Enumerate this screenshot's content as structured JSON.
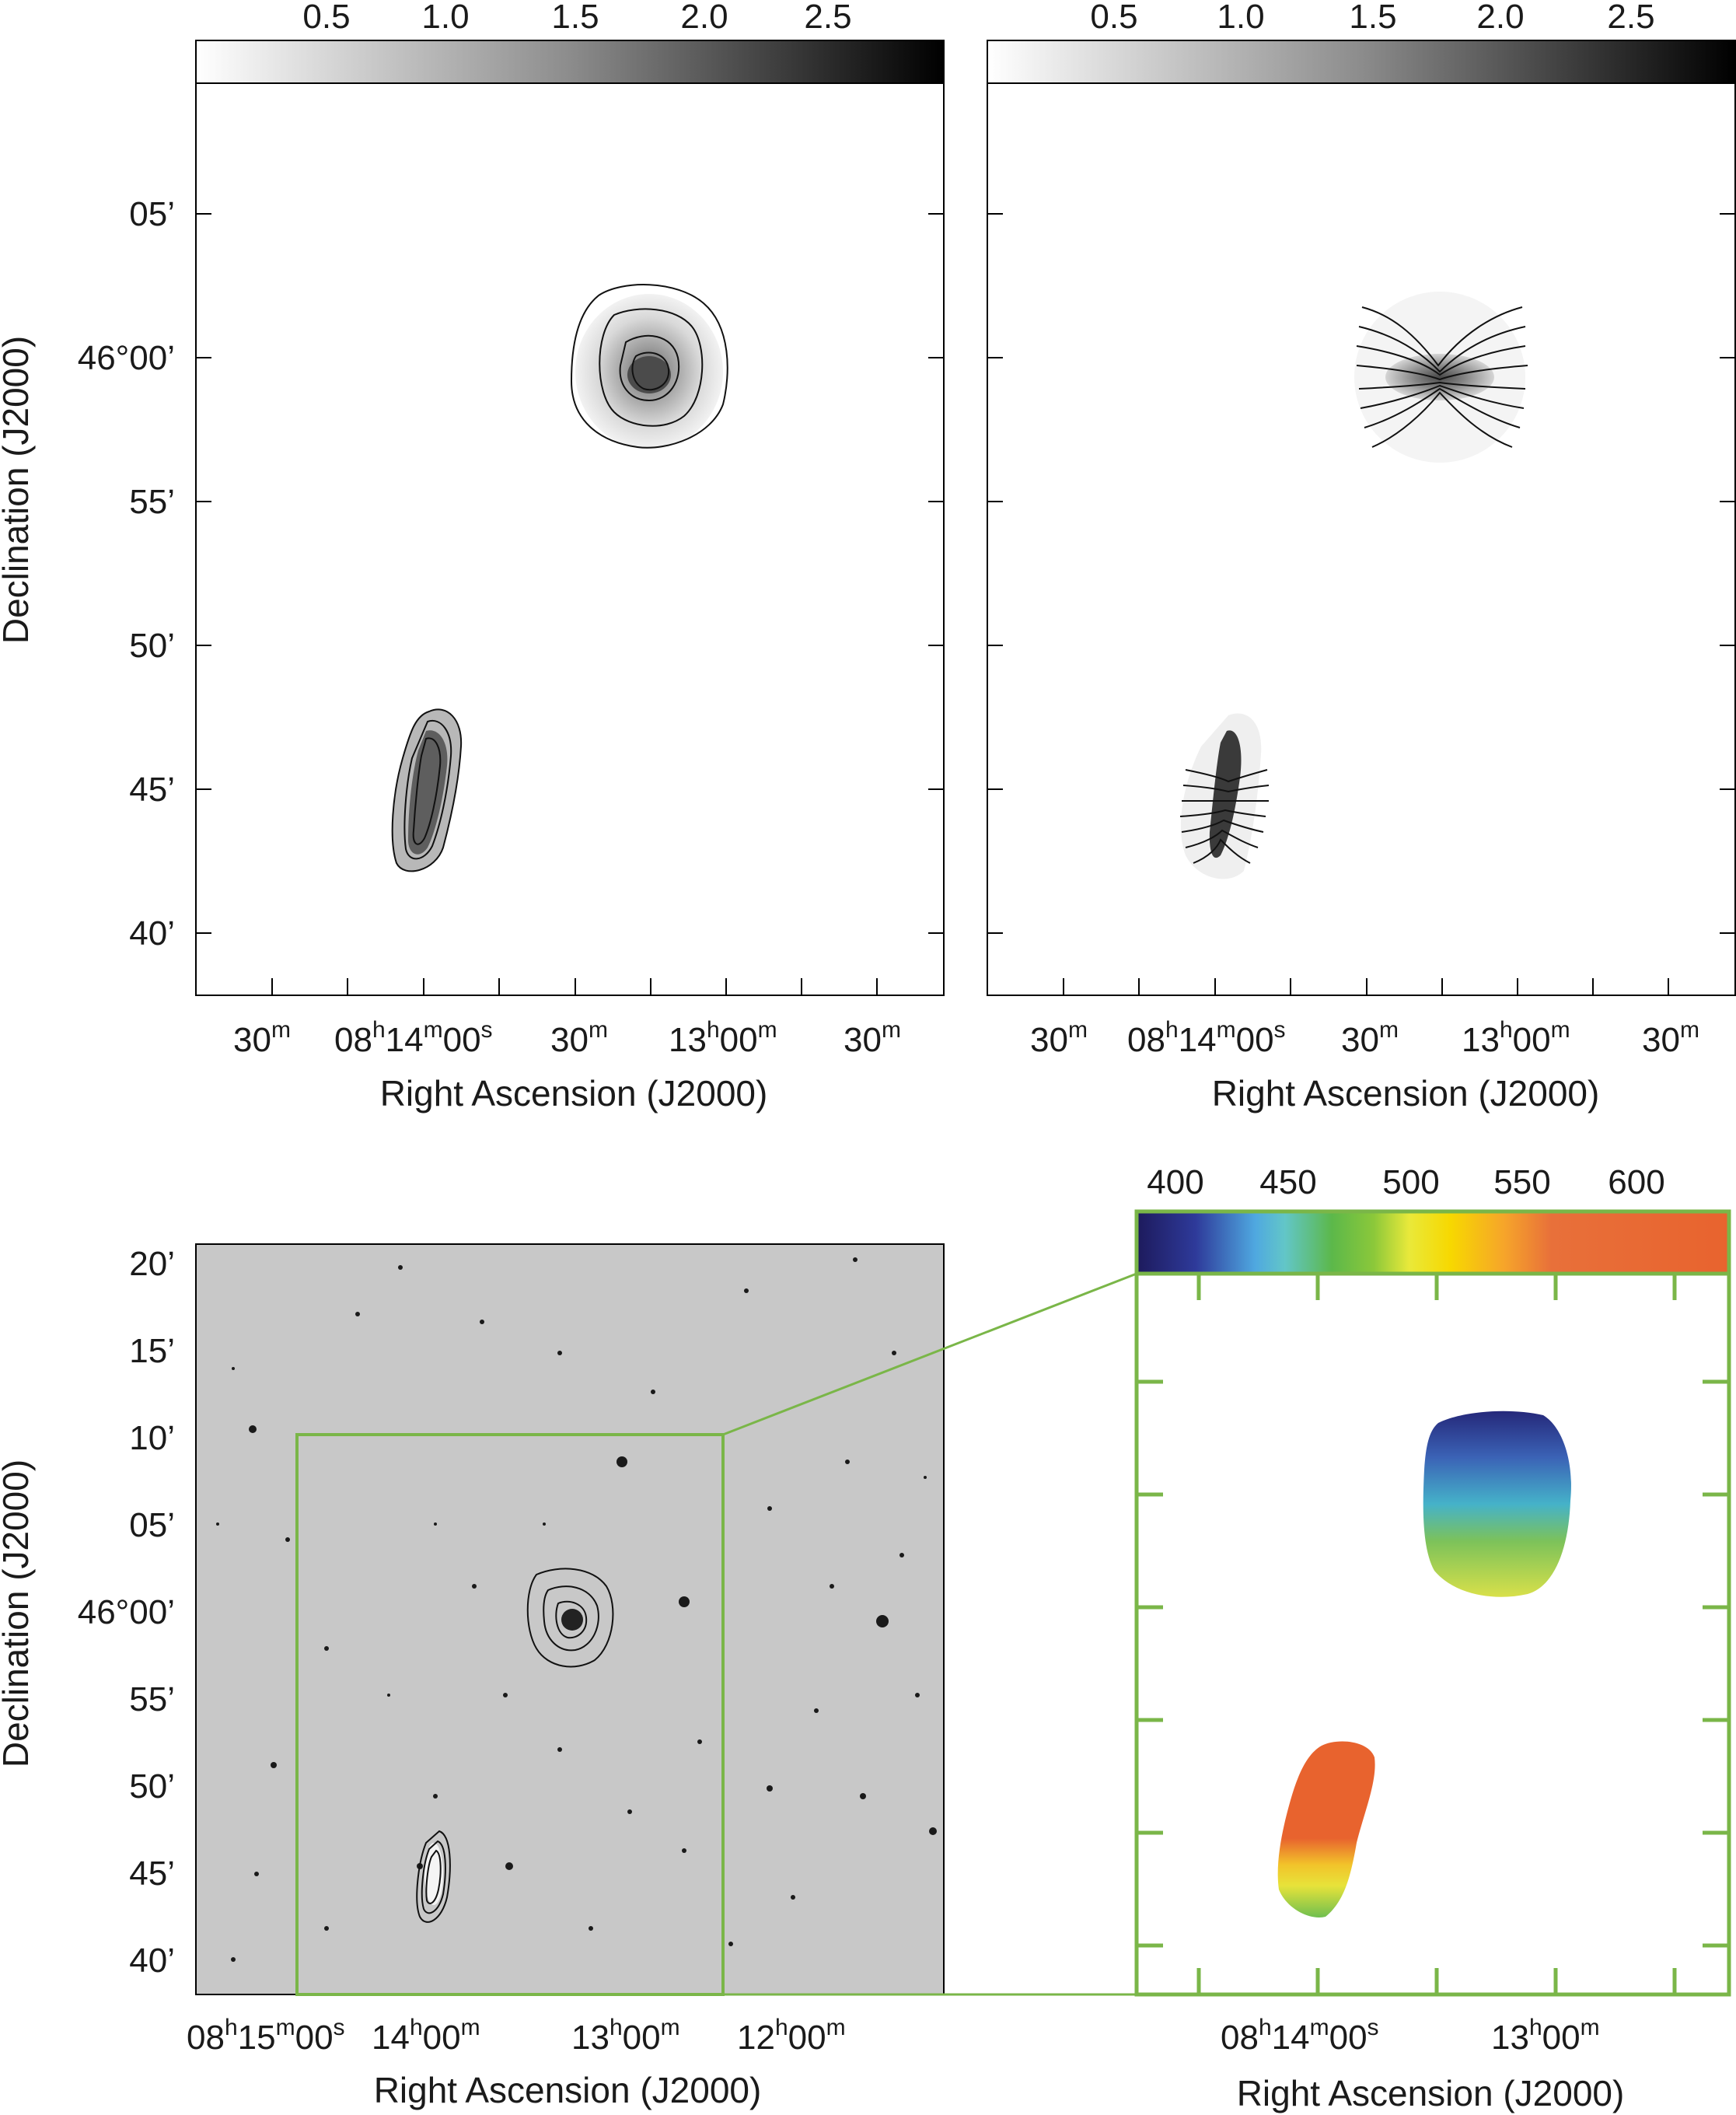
{
  "colors": {
    "frame": "#000000",
    "inset_frame": "#7ab648",
    "star_field_bg": "#c8c8c8"
  },
  "grayscale_colorbar": {
    "ticks": [
      "0.5",
      "1.0",
      "1.5",
      "2.0",
      "2.5"
    ],
    "range": [
      0.0,
      2.9
    ]
  },
  "velocity_colorbar": {
    "ticks": [
      "400",
      "450",
      "500",
      "550",
      "600"
    ],
    "range": [
      380,
      640
    ]
  },
  "top_panels": {
    "y_ticks": [
      "05’",
      "46°00’",
      "55’",
      "50’",
      "45’",
      "40’"
    ],
    "x_ticks": [
      {
        "main": "30",
        "sup": "m"
      },
      {
        "main": "08",
        "sup": "h",
        "main2": "14",
        "sup2": "m",
        "main3": "00",
        "sup3": "s"
      },
      {
        "main": "30",
        "sup": "m"
      },
      {
        "main": "13",
        "sup": "h",
        "main2": "00",
        "sup2": "m"
      },
      {
        "main": "30",
        "sup": "m"
      }
    ]
  },
  "bottom_left": {
    "y_ticks": [
      "20’",
      "15’",
      "10’",
      "05’",
      "46°00’",
      "55’",
      "50’",
      "45’",
      "40’"
    ],
    "x_ticks": [
      {
        "main": "08",
        "sup": "h",
        "main2": "15",
        "sup2": "m",
        "main3": "00",
        "sup3": "s"
      },
      {
        "main": "14",
        "sup": "h",
        "main2": "00",
        "sup2": "m"
      },
      {
        "main": "13",
        "sup": "h",
        "main2": "00",
        "sup2": "m"
      },
      {
        "main": "12",
        "sup": "h",
        "main2": "00",
        "sup2": "m"
      }
    ]
  },
  "bottom_right": {
    "x_ticks": [
      {
        "main": "08",
        "sup": "h",
        "main2": "14",
        "sup2": "m",
        "main3": "00",
        "sup3": "s"
      },
      {
        "main": "13",
        "sup": "h",
        "main2": "00",
        "sup2": "m"
      }
    ]
  },
  "labels": {
    "ra_axis": "Right Ascension (J2000)",
    "dec_axis": "Declination (J2000)"
  }
}
